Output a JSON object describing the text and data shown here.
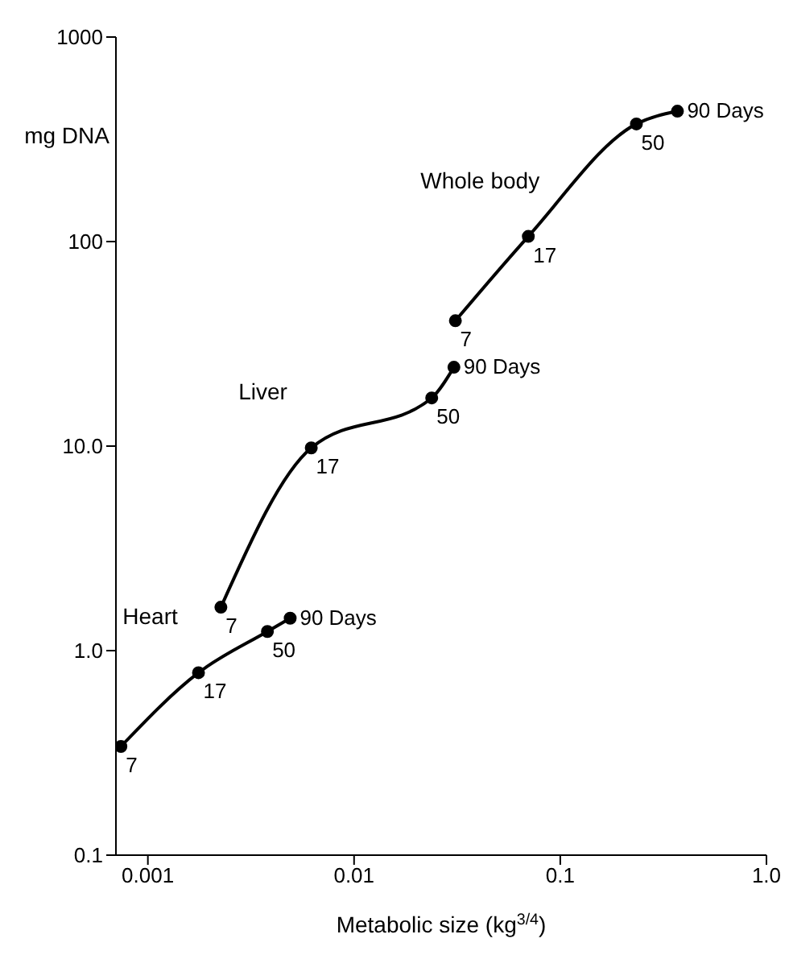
{
  "chart_data": {
    "type": "line",
    "xlabel": "Metabolic size (kg$^{3/4}$)",
    "ylabel": "mg DNA",
    "log": "xy",
    "marker": "circle",
    "line_style": "solid",
    "xlim": [
      0.0007,
      1
    ],
    "xticks": [
      0.001,
      0.01,
      0.1,
      {
        "value": 1,
        "label": "1.0"
      }
    ],
    "ylim": [
      0.1,
      1000
    ],
    "yticks": [
      {
        "value": 0.1,
        "label": "0.1"
      },
      {
        "value": 1,
        "label": "1.0"
      },
      {
        "value": 10,
        "label": "10.0"
      },
      100,
      1000
    ],
    "series": [
      {
        "name": "Heart",
        "color": "#000000",
        "x": [
          0.00074,
          0.00176,
          0.0038,
          0.0049
        ],
        "values": [
          0.34,
          0.78,
          1.24,
          1.44
        ]
      },
      {
        "name": "Liver",
        "color": "#000000",
        "x": [
          0.00226,
          0.0062,
          0.0238,
          0.0305
        ],
        "values": [
          1.63,
          9.8,
          17.2,
          24.3
        ]
      },
      {
        "name": "Whole body",
        "color": "#000000",
        "x": [
          0.031,
          0.07,
          0.234,
          0.37
        ],
        "values": [
          41,
          106,
          376,
          434
        ]
      }
    ],
    "annotations": [
      {
        "text": "7",
        "x": 0.00074,
        "y": 0.34
      },
      {
        "text": "17",
        "x": 0.00176,
        "y": 0.78
      },
      {
        "text": "50",
        "x": 0.0038,
        "y": 1.24
      },
      {
        "text": "90 Days",
        "x": 0.0049,
        "y": 1.44
      },
      {
        "text": "7",
        "x": 0.00226,
        "y": 1.63
      },
      {
        "text": "17",
        "x": 0.0062,
        "y": 9.8
      },
      {
        "text": "50",
        "x": 0.0238,
        "y": 17.2
      },
      {
        "text": "90 Days",
        "x": 0.0305,
        "y": 24.3
      },
      {
        "text": "7",
        "x": 0.031,
        "y": 41
      },
      {
        "text": "17",
        "x": 0.07,
        "y": 106
      },
      {
        "text": "50",
        "x": 0.234,
        "y": 376
      },
      {
        "text": "90 Days",
        "x": 0.37,
        "y": 434
      }
    ]
  }
}
